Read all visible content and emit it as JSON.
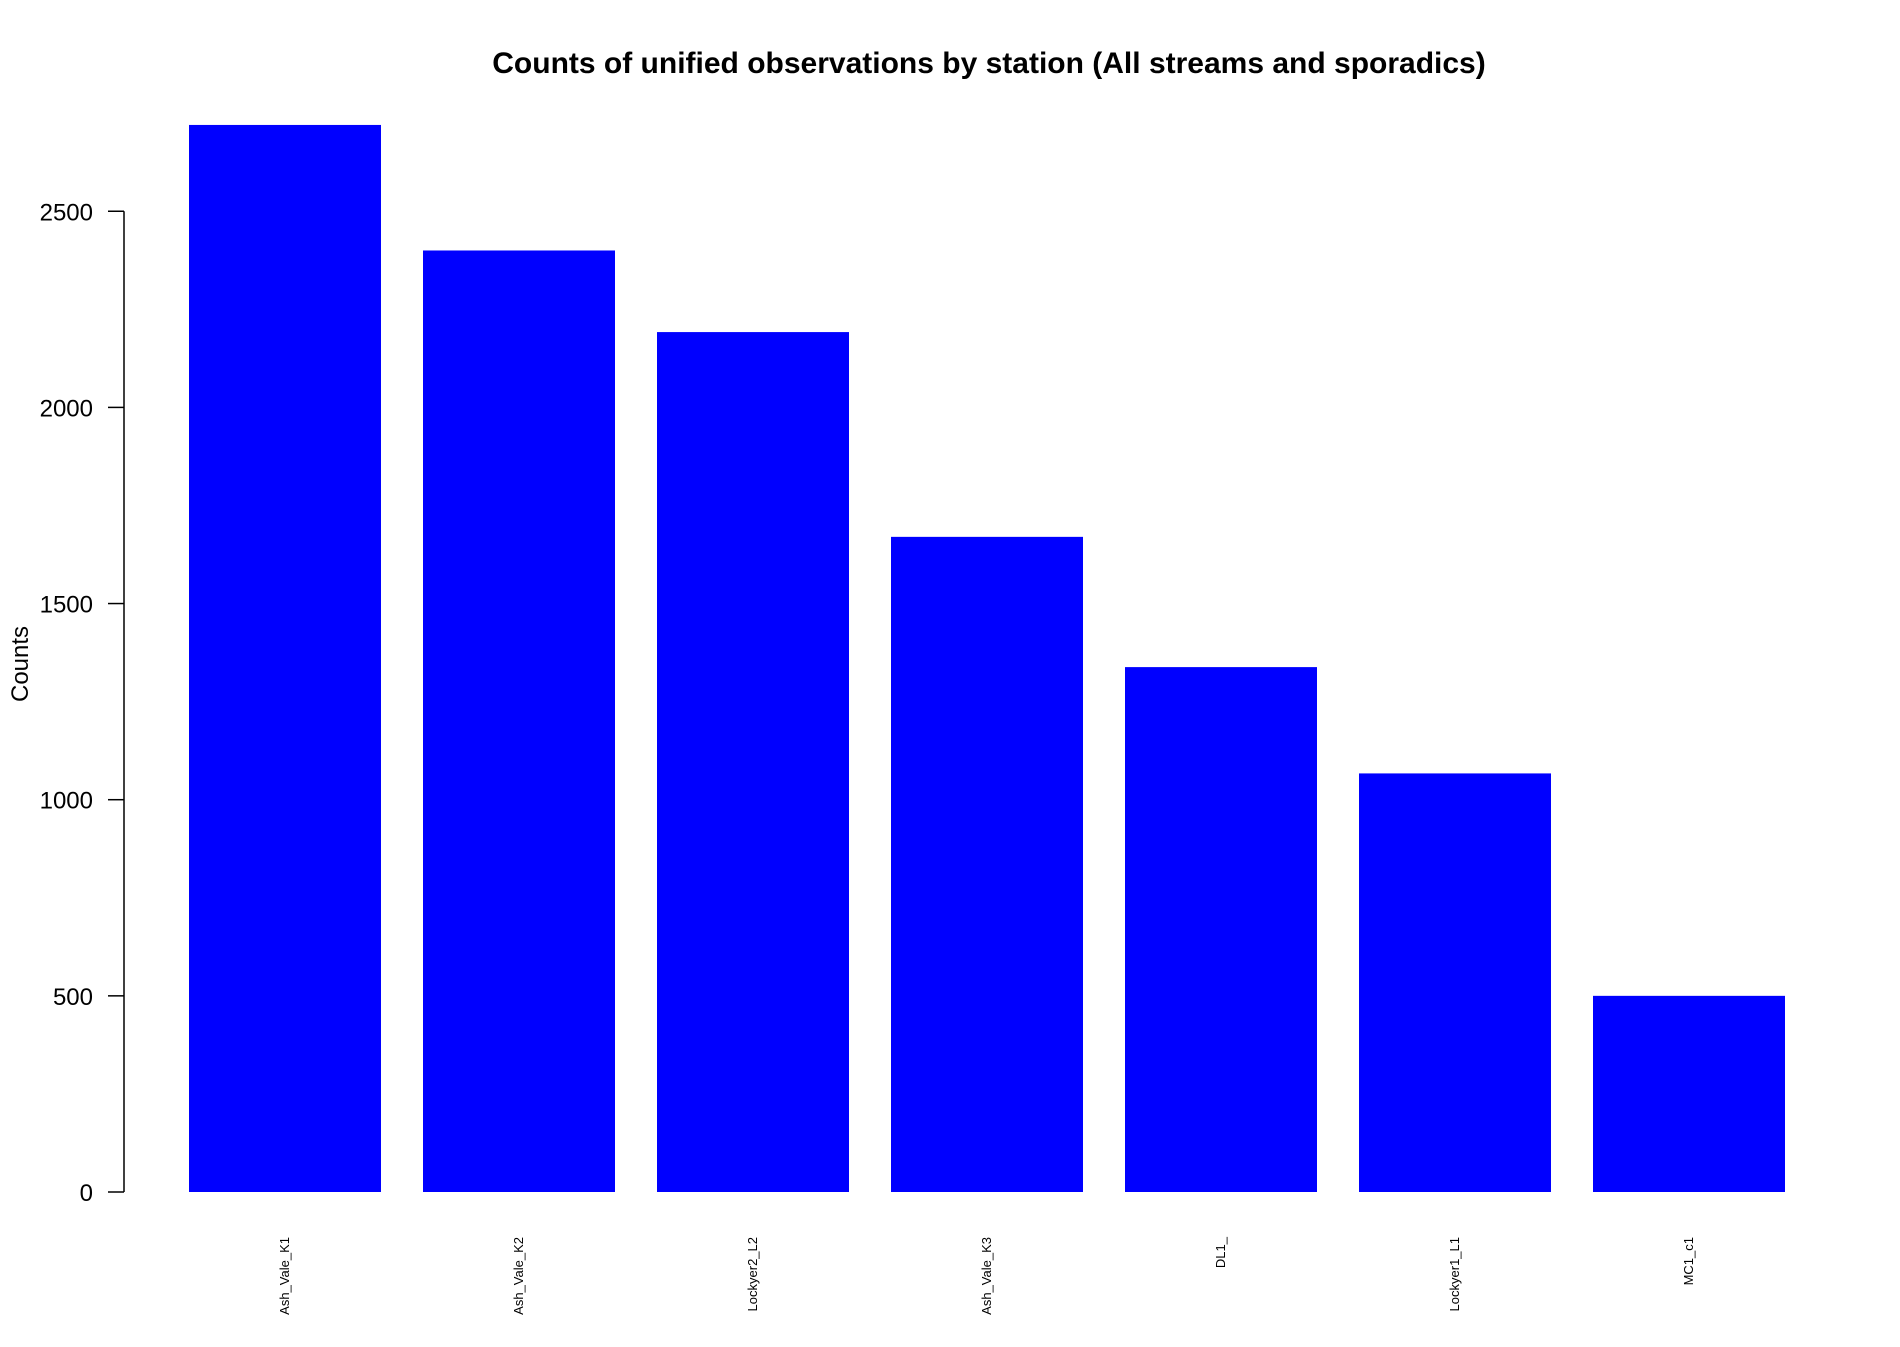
{
  "chart_data": {
    "type": "bar",
    "title": "Counts of unified observations by station (All streams and sporadics)",
    "xlabel": "",
    "ylabel": "Counts",
    "categories": [
      "Ash_Vale_K1",
      "Ash_Vale_K2",
      "Lockyer2_L2",
      "Ash_Vale_K3",
      "DL1_",
      "Lockyer1_L1",
      "MC1_c1"
    ],
    "values": [
      2720,
      2400,
      2192,
      1670,
      1338,
      1067,
      500
    ],
    "yticks": [
      0,
      500,
      1000,
      1500,
      2000,
      2500
    ],
    "ylim": [
      0,
      2720
    ],
    "grid": false,
    "legend": "none",
    "bar_color": "#0000ff"
  }
}
